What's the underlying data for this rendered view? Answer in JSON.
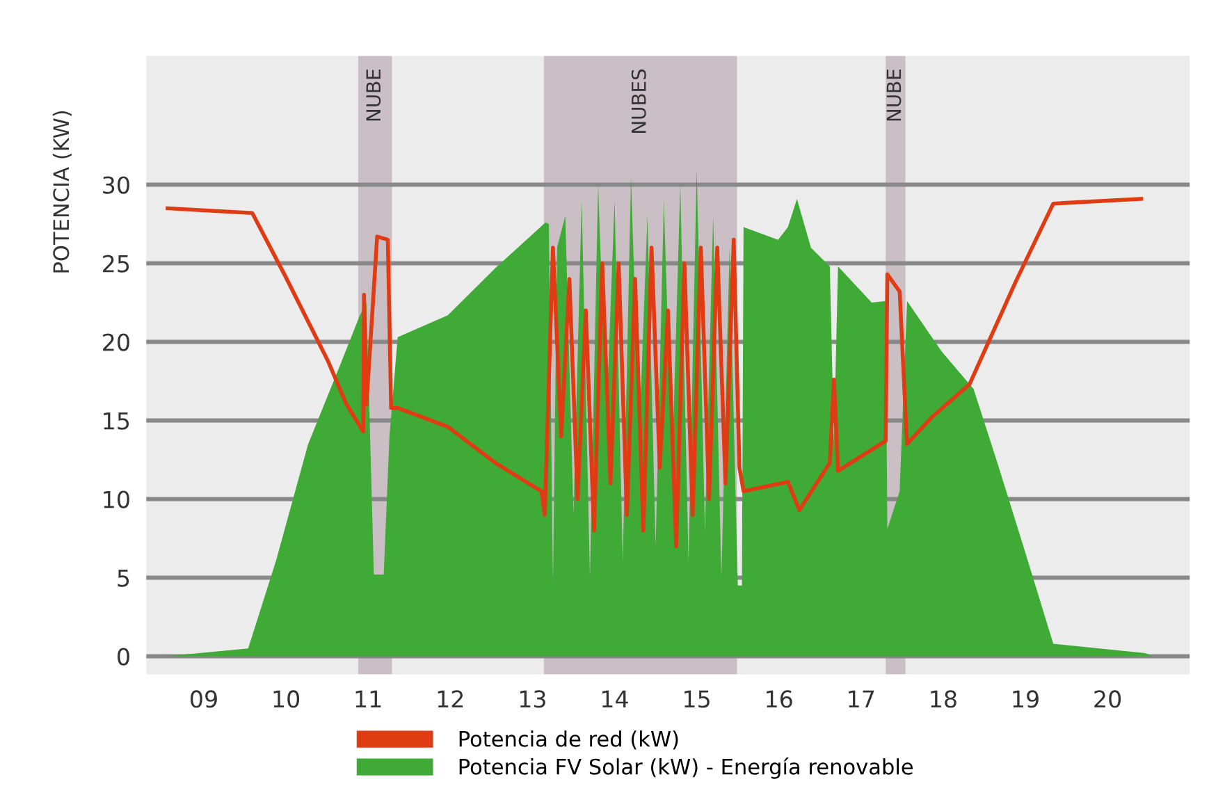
{
  "chart_data": {
    "type": "line",
    "ylabel": "POTENCIA (KW)",
    "xlim": [
      8.3,
      21.0
    ],
    "xticks": [
      {
        "value": 9,
        "label": "09"
      },
      10,
      11,
      12,
      13,
      14,
      15,
      16,
      17,
      18,
      19,
      20
    ],
    "ylim": [
      -1.15,
      38.2
    ],
    "yticks": [
      0,
      5,
      10,
      15,
      20,
      25,
      30
    ],
    "grid": "y",
    "legend": "bottom",
    "bands": [
      {
        "axis": "x",
        "from": 10.88,
        "to": 11.29,
        "label": "NUBE",
        "color": "#c9bfc4"
      },
      {
        "axis": "x",
        "from": 13.14,
        "to": 15.49,
        "label": "NUBES",
        "color": "#c9bfc4"
      },
      {
        "axis": "x",
        "from": 17.3,
        "to": 17.54,
        "label": "NUBE",
        "color": "#c9bfc4"
      }
    ],
    "series": [
      {
        "name": "Potencia FV Solar (kW) - Energía renovable",
        "type": "area",
        "color": "#3faa35",
        "x": [
          8.52,
          9.54,
          9.88,
          10.27,
          10.68,
          10.9,
          10.98,
          11.07,
          11.19,
          11.26,
          11.36,
          11.97,
          12.55,
          13.16,
          13.2,
          13.25,
          13.3,
          13.4,
          13.5,
          13.6,
          13.7,
          13.8,
          13.9,
          14.0,
          14.1,
          14.2,
          14.3,
          14.4,
          14.5,
          14.6,
          14.7,
          14.8,
          14.9,
          15.0,
          15.1,
          15.2,
          15.3,
          15.4,
          15.5,
          15.55,
          15.57,
          15.99,
          16.11,
          16.22,
          16.39,
          16.62,
          16.67,
          16.72,
          17.13,
          17.3,
          17.32,
          17.47,
          17.56,
          17.98,
          18.37,
          18.66,
          19.0,
          19.34,
          20.46,
          20.55
        ],
        "values": [
          0,
          0.5,
          6.1,
          13.5,
          18.8,
          21.7,
          22.5,
          5.2,
          5.2,
          14,
          20.3,
          21.7,
          24.7,
          27.6,
          27.5,
          4.5,
          26,
          28,
          9,
          29,
          5,
          30,
          15,
          29,
          6,
          30.5,
          14,
          28,
          7,
          29,
          12,
          30,
          6,
          31,
          8,
          28,
          5,
          26,
          4.5,
          4.5,
          27.3,
          26.5,
          27.3,
          29.1,
          26,
          24.8,
          13.7,
          24.8,
          22.5,
          22.6,
          8.1,
          10.5,
          22.6,
          19.4,
          17,
          12.3,
          6.6,
          0.8,
          0.2,
          0
        ]
      },
      {
        "name": "Potencia de red (kW)",
        "color": "#e03c14",
        "x": [
          8.56,
          9.59,
          10.0,
          10.51,
          10.73,
          10.94,
          10.95,
          10.98,
          11.11,
          11.24,
          11.28,
          11.36,
          11.97,
          12.55,
          13.11,
          13.15,
          13.25,
          13.35,
          13.45,
          13.55,
          13.65,
          13.75,
          13.85,
          13.95,
          14.05,
          14.15,
          14.25,
          14.35,
          14.45,
          14.55,
          14.65,
          14.75,
          14.85,
          14.95,
          15.05,
          15.15,
          15.25,
          15.35,
          15.45,
          15.52,
          15.57,
          16.11,
          16.25,
          16.62,
          16.67,
          16.72,
          17.3,
          17.32,
          17.47,
          17.56,
          17.86,
          18.32,
          18.88,
          19.34,
          20.41
        ],
        "values": [
          28.5,
          28.2,
          24.1,
          18.8,
          16.1,
          14.3,
          23,
          16,
          26.7,
          26.5,
          15.8,
          15.8,
          14.6,
          12.3,
          10.5,
          9,
          26,
          14,
          24,
          10,
          22,
          8,
          25,
          11,
          25,
          9,
          24,
          8,
          26,
          12,
          22,
          7,
          25,
          9,
          26,
          10,
          26,
          11,
          26.5,
          12,
          10.5,
          11.1,
          9.3,
          12.3,
          17.6,
          11.8,
          13.7,
          24.3,
          23.2,
          13.5,
          15.2,
          17.3,
          23.8,
          28.8,
          29.1
        ]
      }
    ]
  }
}
